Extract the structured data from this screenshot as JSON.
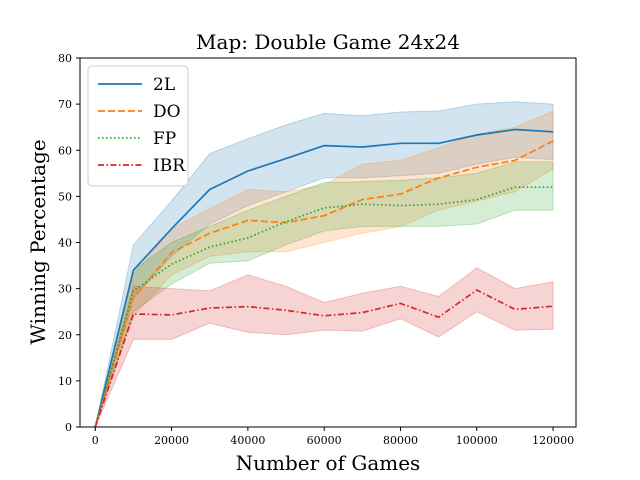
{
  "chart_data": {
    "type": "line",
    "title": "Map: Double Game 24x24",
    "xlabel": "Number of Games",
    "ylabel": "Winning Percentage",
    "xlim": [
      -4000,
      126000
    ],
    "ylim": [
      0,
      80
    ],
    "xticks": [
      0,
      20000,
      40000,
      60000,
      80000,
      100000,
      120000
    ],
    "xtick_labels": [
      "0",
      "20000",
      "40000",
      "60000",
      "80000",
      "100000",
      "120000"
    ],
    "yticks": [
      0,
      10,
      20,
      30,
      40,
      50,
      60,
      70,
      80
    ],
    "ytick_labels": [
      "0",
      "10",
      "20",
      "30",
      "40",
      "50",
      "60",
      "70",
      "80"
    ],
    "grid": false,
    "legend_position": "top-left",
    "x": [
      0,
      10000,
      20000,
      30000,
      40000,
      50000,
      60000,
      70000,
      80000,
      90000,
      100000,
      110000,
      120000
    ],
    "series": [
      {
        "name": "2L",
        "color": "#1f77b4",
        "dash": "solid",
        "values": [
          0,
          34,
          43,
          51.5,
          55.5,
          58.2,
          61,
          60.7,
          61.5,
          61.5,
          63.3,
          64.5,
          64
        ],
        "lower": [
          0,
          28,
          37,
          44,
          48,
          51,
          54,
          54,
          54.5,
          55,
          57,
          58.5,
          58
        ],
        "upper": [
          0,
          39.5,
          49,
          59.3,
          62.5,
          65.5,
          68,
          67.5,
          68.3,
          68.5,
          70,
          70.5,
          70
        ]
      },
      {
        "name": "DO",
        "color": "#ff7f0e",
        "dash": "dashed",
        "values": [
          0,
          28,
          37.8,
          42,
          44.8,
          44.3,
          45.8,
          49.3,
          50.5,
          54,
          56.3,
          57.8,
          62
        ],
        "lower": [
          0,
          24,
          33,
          37,
          38,
          38,
          40,
          42,
          43.5,
          47,
          49,
          51,
          56
        ],
        "upper": [
          0,
          33,
          43,
          47.3,
          51.5,
          51,
          52.5,
          57,
          57.8,
          60.5,
          63.5,
          65,
          68.5
        ]
      },
      {
        "name": "FP",
        "color": "#2ca02c",
        "dash": "dotted",
        "values": [
          0,
          29.5,
          35.3,
          39,
          41,
          44.5,
          47.5,
          48.3,
          48,
          48.3,
          49.3,
          52,
          52
        ],
        "lower": [
          0,
          25,
          31,
          35.5,
          36,
          39.5,
          42.5,
          43.5,
          43.5,
          43.5,
          44,
          47,
          47
        ],
        "upper": [
          0,
          34,
          40,
          43.5,
          47,
          50,
          53,
          53.2,
          53.5,
          54,
          55,
          57.5,
          57.5
        ]
      },
      {
        "name": "IBR",
        "color": "#d62728",
        "dash": "dashdot",
        "values": [
          0,
          24.5,
          24.3,
          25.8,
          26.1,
          25.3,
          24.1,
          24.8,
          26.8,
          23.8,
          29.7,
          25.5,
          26.2
        ],
        "lower": [
          0,
          19,
          19,
          22.5,
          20.5,
          20,
          21,
          20.8,
          23.5,
          19.5,
          25,
          21,
          21.2
        ],
        "upper": [
          0,
          30.5,
          30,
          29.5,
          33,
          30.5,
          27,
          29,
          30.5,
          28.3,
          34.5,
          30,
          31.5
        ]
      }
    ]
  }
}
